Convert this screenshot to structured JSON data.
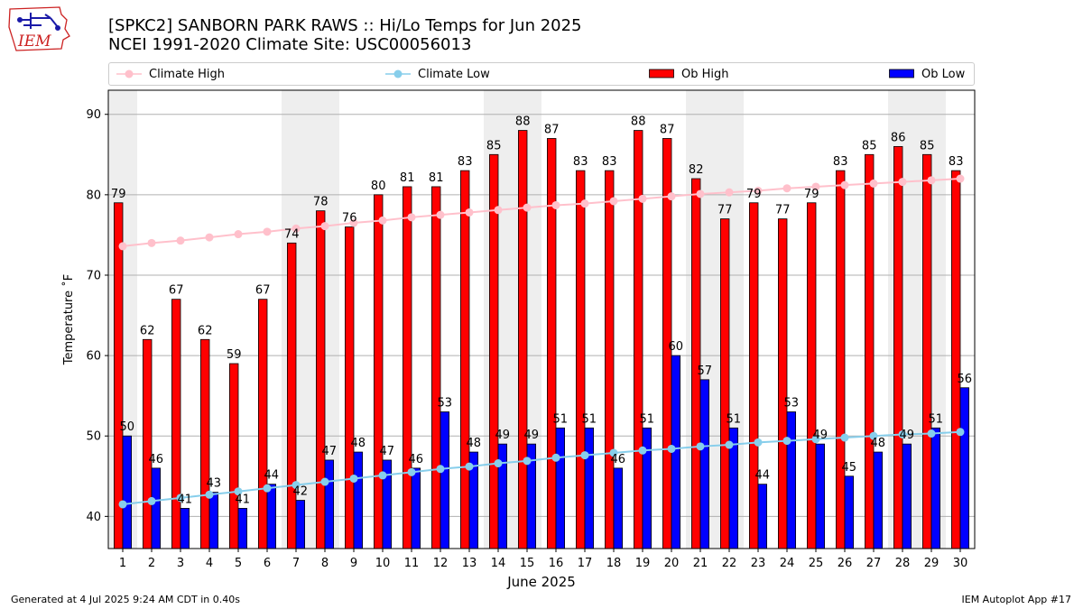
{
  "header": {
    "title_line1": "[SPKC2] SANBORN PARK RAWS :: Hi/Lo Temps for Jun 2025",
    "title_line2": "NCEI 1991-2020 Climate Site: USC00056013",
    "logo_text": "IEM"
  },
  "footer": {
    "generated": "Generated at 4 Jul 2025 9:24 AM CDT in 0.40s",
    "app": "IEM Autoplot App #17"
  },
  "colors": {
    "ob_high": "#ff0000",
    "ob_low": "#0000ff",
    "climate_high": "#ffc0cb",
    "climate_low": "#87ceeb",
    "weekend_shade": "#eeeeee",
    "logo_red": "#cc2222"
  },
  "chart_data": {
    "type": "bar",
    "xlabel": "June 2025",
    "ylabel": "Temperature ˚F",
    "ylim": [
      36,
      93
    ],
    "yticks": [
      40,
      50,
      60,
      70,
      80,
      90
    ],
    "grid": "horizontal",
    "legend_placement": "top",
    "categories": [
      1,
      2,
      3,
      4,
      5,
      6,
      7,
      8,
      9,
      10,
      11,
      12,
      13,
      14,
      15,
      16,
      17,
      18,
      19,
      20,
      21,
      22,
      23,
      24,
      25,
      26,
      27,
      28,
      29,
      30
    ],
    "shaded_days": [
      [
        1,
        1
      ],
      [
        7,
        8
      ],
      [
        14,
        15
      ],
      [
        21,
        22
      ],
      [
        28,
        29
      ]
    ],
    "series": [
      {
        "name": "Climate High",
        "kind": "line",
        "values": [
          73.6,
          74.0,
          74.3,
          74.7,
          75.1,
          75.4,
          75.8,
          76.1,
          76.5,
          76.8,
          77.2,
          77.5,
          77.8,
          78.1,
          78.4,
          78.7,
          78.9,
          79.2,
          79.5,
          79.8,
          80.1,
          80.3,
          80.5,
          80.8,
          81.0,
          81.2,
          81.4,
          81.6,
          81.8,
          82.0
        ]
      },
      {
        "name": "Climate Low",
        "kind": "line",
        "values": [
          41.5,
          41.9,
          42.3,
          42.7,
          43.1,
          43.5,
          43.9,
          44.3,
          44.7,
          45.1,
          45.5,
          45.9,
          46.2,
          46.6,
          46.9,
          47.3,
          47.6,
          47.9,
          48.2,
          48.4,
          48.7,
          48.9,
          49.2,
          49.4,
          49.6,
          49.8,
          50.0,
          50.2,
          50.3,
          50.5
        ]
      },
      {
        "name": "Ob High",
        "kind": "bar",
        "values": [
          79,
          62,
          67,
          62,
          59,
          67,
          74,
          78,
          76,
          80,
          81,
          81,
          83,
          85,
          88,
          87,
          83,
          83,
          88,
          87,
          82,
          77,
          79,
          77,
          79,
          83,
          85,
          86,
          85,
          83
        ]
      },
      {
        "name": "Ob Low",
        "kind": "bar",
        "values": [
          50,
          46,
          41,
          43,
          41,
          44,
          42,
          47,
          48,
          47,
          46,
          53,
          48,
          49,
          49,
          51,
          51,
          46,
          51,
          60,
          57,
          51,
          44,
          53,
          49,
          45,
          48,
          49,
          51,
          56
        ]
      }
    ]
  }
}
